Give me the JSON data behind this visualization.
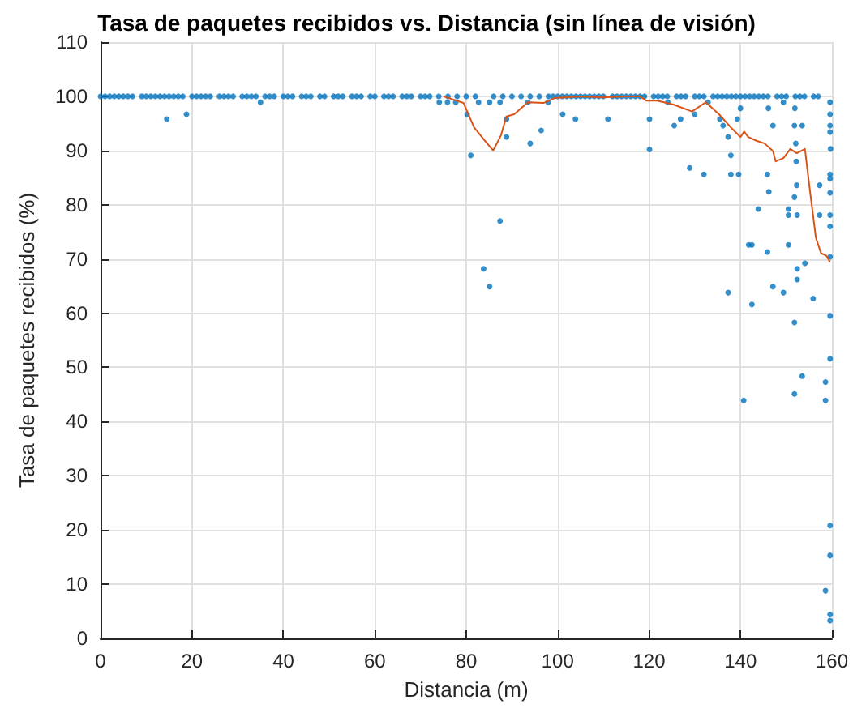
{
  "chart_data": {
    "type": "scatter",
    "title": "Tasa de paquetes recibidos vs. Distancia (sin línea de visión)",
    "xlabel": "Distancia (m)",
    "ylabel": "Tasa de paquetes recibidos (%)",
    "xlim": [
      0,
      160
    ],
    "xticks": [
      0,
      20,
      40,
      60,
      80,
      100,
      120,
      140,
      160
    ],
    "ylim": [
      0,
      110
    ],
    "yticks": [
      0,
      10,
      20,
      30,
      40,
      50,
      60,
      70,
      80,
      90,
      100,
      110
    ],
    "grid": true,
    "series": [
      {
        "color": "#0072bd",
        "marker": "circle",
        "x": [
          0,
          1,
          2,
          3,
          4,
          5,
          6,
          7,
          9,
          10,
          11,
          12,
          13,
          14,
          15,
          16,
          17,
          18,
          20,
          21,
          22,
          23,
          24,
          26,
          27,
          28,
          29,
          31,
          32,
          33,
          34,
          36,
          37,
          38,
          40,
          41,
          42,
          44,
          45,
          46,
          48,
          49,
          51,
          52,
          53,
          55,
          56,
          57,
          59,
          60,
          62,
          63,
          64,
          66,
          67,
          68,
          70,
          71,
          72,
          74,
          76,
          78,
          80,
          82,
          86,
          88,
          90,
          92,
          94,
          96,
          98,
          99,
          100,
          101,
          102,
          103,
          104,
          105,
          106,
          107,
          108,
          109,
          110,
          112,
          113,
          114,
          115,
          116,
          117,
          118,
          119,
          121,
          122,
          123,
          124,
          126,
          127,
          128,
          130,
          131,
          132,
          134,
          135,
          136,
          137,
          138,
          139,
          140,
          141,
          142,
          143,
          144,
          145,
          146,
          148,
          149,
          150,
          152,
          153,
          154,
          156,
          157,
          130,
          140,
          146.1,
          149.4,
          151.9,
          159.6,
          159.6,
          159.6,
          159.6,
          153.5,
          151.8,
          147.1,
          135.5,
          136.2,
          139.3,
          137.3,
          152.1,
          152.2,
          159.7,
          137.9,
          132,
          137.9,
          139.6,
          145.9,
          159.6,
          159.6,
          159.6,
          157.3,
          146.2,
          152.3,
          151.8,
          143.9,
          150.5,
          150.5,
          152.4,
          157.3,
          159.6,
          159.6,
          141.8,
          142.5,
          145.9,
          150.5,
          159.6,
          154.1,
          152.4,
          152.4,
          147.1,
          149.4,
          137.3,
          155.9,
          142.5,
          151.8,
          159.6,
          159.6,
          153.5,
          158.6,
          151.8,
          158.6,
          140.7,
          159.6,
          159.6,
          158.6,
          159.6,
          159.6,
          74.1,
          75.9,
          77.7,
          82.7,
          85.1,
          87.4,
          93.5,
          97.9,
          124.1,
          132.9,
          80.2,
          101.1,
          103.9,
          111,
          120.1,
          88.8,
          126.9,
          125.5,
          96.4,
          88.8,
          94,
          81,
          120.1,
          128.9,
          83.8,
          85.1,
          87.4,
          14.5,
          18.8,
          35
        ],
        "values": [
          100,
          100,
          100,
          100,
          100,
          100,
          100,
          100,
          100,
          100,
          100,
          100,
          100,
          100,
          100,
          100,
          100,
          100,
          100,
          100,
          100,
          100,
          100,
          100,
          100,
          100,
          100,
          100,
          100,
          100,
          100,
          100,
          100,
          100,
          100,
          100,
          100,
          100,
          100,
          100,
          100,
          100,
          100,
          100,
          100,
          100,
          100,
          100,
          100,
          100,
          100,
          100,
          100,
          100,
          100,
          100,
          100,
          100,
          100,
          100,
          100,
          100,
          100,
          100,
          100,
          100,
          100,
          100,
          100,
          100,
          100,
          100,
          100,
          100,
          100,
          100,
          100,
          100,
          100,
          100,
          100,
          100,
          100,
          100,
          100,
          100,
          100,
          100,
          100,
          100,
          100,
          100,
          100,
          100,
          100,
          100,
          100,
          100,
          100,
          100,
          100,
          100,
          100,
          100,
          100,
          100,
          100,
          100,
          100,
          100,
          100,
          100,
          100,
          100,
          100,
          100,
          100,
          100,
          100,
          100,
          100,
          100,
          96.7,
          97.8,
          97.8,
          98.9,
          97.8,
          98.9,
          96.7,
          94.6,
          93.4,
          94.6,
          94.6,
          94.6,
          95.8,
          94.6,
          95.8,
          92.5,
          91.3,
          88,
          90.3,
          89.1,
          85.6,
          85.6,
          85.6,
          85.6,
          85.6,
          84.8,
          82.2,
          83.6,
          82.4,
          83.6,
          81.4,
          79.2,
          79.2,
          78.1,
          78.1,
          78.1,
          78.1,
          76,
          72.6,
          72.6,
          71.3,
          72.6,
          70.4,
          69.2,
          68.2,
          66.2,
          64.9,
          63.8,
          63.8,
          62.7,
          61.6,
          58.3,
          59.5,
          51.6,
          48.4,
          47.3,
          45.1,
          43.9,
          43.9,
          20.8,
          15.3,
          8.8,
          4.4,
          3.3,
          98.9,
          98.9,
          98.9,
          98.9,
          98.9,
          98.9,
          98.9,
          98.9,
          98.9,
          98.9,
          96.7,
          96.7,
          95.8,
          95.8,
          95.8,
          95.8,
          95.8,
          94.6,
          93.7,
          92.5,
          91.3,
          89.1,
          90.2,
          86.8,
          68.2,
          64.9,
          77,
          95.8,
          96.7,
          98.9
        ]
      },
      {
        "type": "line",
        "color": "#d95319",
        "marker": "none",
        "line_style": "solid",
        "x": [
          75,
          79.4,
          81.7,
          84.1,
          85.9,
          87.6,
          88.8,
          90.5,
          93.5,
          97,
          99.4,
          105,
          110,
          115,
          118,
          119.4,
          121.8,
          125.3,
          129.4,
          132.4,
          135.3,
          138.2,
          140,
          140.8,
          141.7,
          143.5,
          145.3,
          147.1,
          147.7,
          149.4,
          150.9,
          152.3,
          154.1,
          155.3,
          156.5,
          157.6,
          158.8,
          159.6
        ],
        "values": [
          100,
          98.8,
          94.3,
          91.8,
          90,
          92.8,
          96.3,
          96.7,
          98.9,
          98.8,
          99.7,
          100,
          99.8,
          100,
          100,
          99.2,
          99.2,
          98.5,
          97.2,
          98.9,
          96.7,
          94,
          92.5,
          93.5,
          92.5,
          91.8,
          91.3,
          89.9,
          88,
          88.6,
          90.3,
          89.5,
          90.3,
          81.9,
          73.9,
          71.1,
          70.6,
          69.4
        ]
      }
    ]
  }
}
